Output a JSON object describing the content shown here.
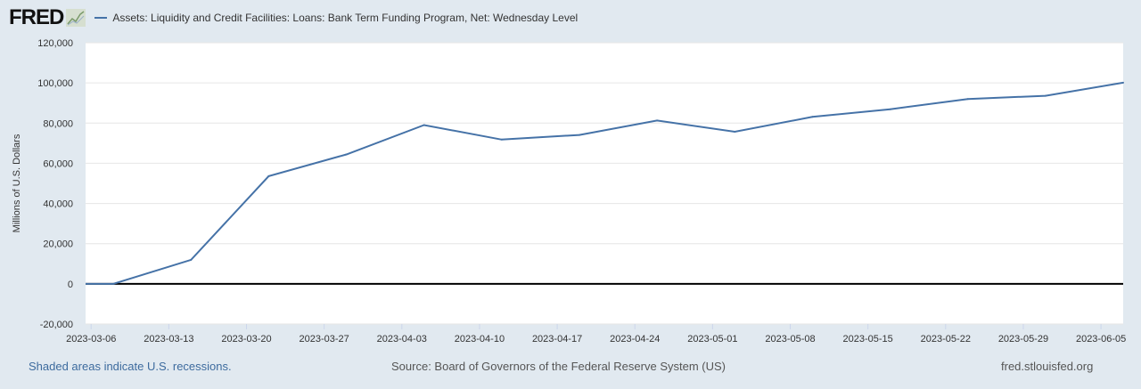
{
  "header": {
    "logo": "FRED",
    "logo_icon": "chart-line-icon"
  },
  "chart_data": {
    "type": "line",
    "title": "",
    "series": [
      {
        "name": "Assets: Liquidity and Credit Facilities: Loans: Bank Term Funding Program, Net: Wednesday Level",
        "color": "#4572a7",
        "x": [
          "2023-03-01",
          "2023-03-08",
          "2023-03-15",
          "2023-03-22",
          "2023-03-29",
          "2023-04-05",
          "2023-04-12",
          "2023-04-19",
          "2023-04-26",
          "2023-05-03",
          "2023-05-10",
          "2023-05-17",
          "2023-05-24",
          "2023-05-31",
          "2023-06-07"
        ],
        "values": [
          0,
          0,
          11950,
          53600,
          64400,
          79000,
          71800,
          74100,
          81300,
          75700,
          83100,
          86900,
          92000,
          93600,
          100100
        ]
      }
    ],
    "xlabel": "",
    "ylabel": "Millions of U.S. Dollars",
    "xlim": [
      "2023-03-05",
      "2023-06-07"
    ],
    "ylim": [
      -20000,
      120000
    ],
    "yticks": [
      "-20,000",
      "0",
      "20,000",
      "40,000",
      "60,000",
      "80,000",
      "100,000",
      "120,000"
    ],
    "ytick_values": [
      -20000,
      0,
      20000,
      40000,
      60000,
      80000,
      100000,
      120000
    ],
    "xticks": [
      "2023-03-06",
      "2023-03-13",
      "2023-03-20",
      "2023-03-27",
      "2023-04-03",
      "2023-04-10",
      "2023-04-17",
      "2023-04-24",
      "2023-05-01",
      "2023-05-08",
      "2023-05-15",
      "2023-05-22",
      "2023-05-29",
      "2023-06-05"
    ],
    "grid": true,
    "legend": "top-left"
  },
  "footer": {
    "recessions": "Shaded areas indicate U.S. recessions.",
    "source": "Source: Board of Governors of the Federal Reserve System (US)",
    "site": "fred.stlouisfed.org"
  }
}
